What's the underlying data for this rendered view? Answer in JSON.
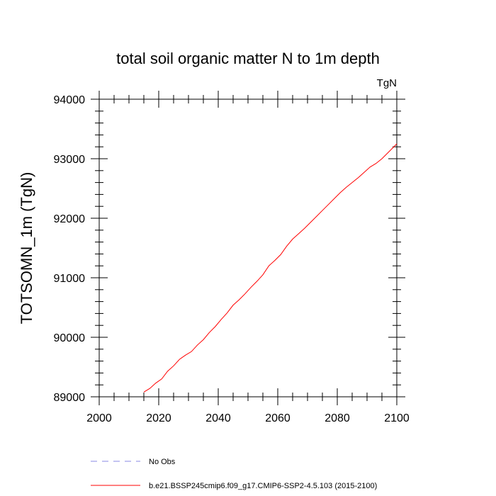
{
  "chart_data": {
    "type": "line",
    "title": "total soil organic matter N to 1m depth",
    "units_label": "TgN",
    "ylabel": "TOTSOMN_1m  (TgN)",
    "xlabel": "",
    "xlim": [
      2000,
      2100
    ],
    "ylim": [
      89000,
      94000
    ],
    "x_ticks": [
      "2000",
      "2020",
      "2040",
      "2060",
      "2080",
      "2100"
    ],
    "y_ticks": [
      "89000",
      "90000",
      "91000",
      "92000",
      "93000",
      "94000"
    ],
    "series": [
      {
        "name": "b.e21.BSSP245cmip6.f09_g17.CMIP6-SSP2-4.5.103 (2015-2100)",
        "color": "#ff0000",
        "style": "solid",
        "x": [
          2015,
          2017,
          2019,
          2021,
          2023,
          2025,
          2027,
          2029,
          2031,
          2033,
          2035,
          2037,
          2039,
          2041,
          2043,
          2045,
          2047,
          2049,
          2051,
          2053,
          2055,
          2057,
          2059,
          2061,
          2063,
          2065,
          2067,
          2069,
          2071,
          2073,
          2075,
          2077,
          2079,
          2081,
          2083,
          2085,
          2087,
          2089,
          2091,
          2093,
          2095,
          2097,
          2100
        ],
        "y": [
          89080,
          89140,
          89230,
          89300,
          89430,
          89520,
          89630,
          89700,
          89760,
          89870,
          89960,
          90080,
          90180,
          90300,
          90410,
          90540,
          90630,
          90730,
          90840,
          90940,
          91050,
          91200,
          91290,
          91390,
          91530,
          91650,
          91740,
          91830,
          91930,
          92030,
          92130,
          92230,
          92330,
          92430,
          92520,
          92600,
          92680,
          92770,
          92860,
          92920,
          93000,
          93100,
          93250
        ]
      },
      {
        "name": "No Obs",
        "color": "#8a8ae6",
        "style": "dashed",
        "x": [],
        "y": []
      }
    ],
    "legend_position": "bottom-left"
  }
}
